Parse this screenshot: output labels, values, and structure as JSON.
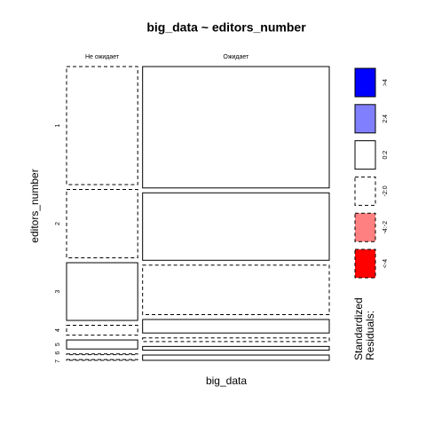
{
  "chart_data": {
    "type": "mosaic",
    "title": "big_data ~ editors_number",
    "x_label": "big_data",
    "y_label": "editors_number",
    "columns": [
      "Не ожидает",
      "Ожидает"
    ],
    "column_shares": [
      27.6,
      72.4
    ],
    "rows": [
      "1",
      "2",
      "3",
      "4",
      "5",
      "6",
      "7"
    ],
    "values": [
      [
        44.6,
        25.8,
        21.8,
        3.7,
        3.4,
        0.3,
        0.3
      ],
      [
        45.9,
        25.5,
        18.7,
        5.1,
        1.4,
        1.4,
        2.0
      ]
    ],
    "shading": [
      [
        "-2:0",
        "-2:0",
        "0:2",
        "-2:0",
        "0:2",
        "-2:0",
        "-2:0"
      ],
      [
        "0:2",
        "0:2",
        "-2:0",
        "0:2",
        "-2:0",
        "0:2",
        "0:2"
      ]
    ],
    "legend": {
      "title": "Standardized\nResiduals:",
      "entries": [
        {
          "label": ">4",
          "color": "#0000ff",
          "dashed": false
        },
        {
          "label": "2:4",
          "color": "#8080ff",
          "dashed": false
        },
        {
          "label": "0:2",
          "color": "#ffffff",
          "dashed": false
        },
        {
          "label": "-2:0",
          "color": "#ffffff",
          "dashed": true
        },
        {
          "label": "-4:-2",
          "color": "#ff8080",
          "dashed": true
        },
        {
          "label": "<-4",
          "color": "#ff0000",
          "dashed": true
        }
      ]
    }
  }
}
